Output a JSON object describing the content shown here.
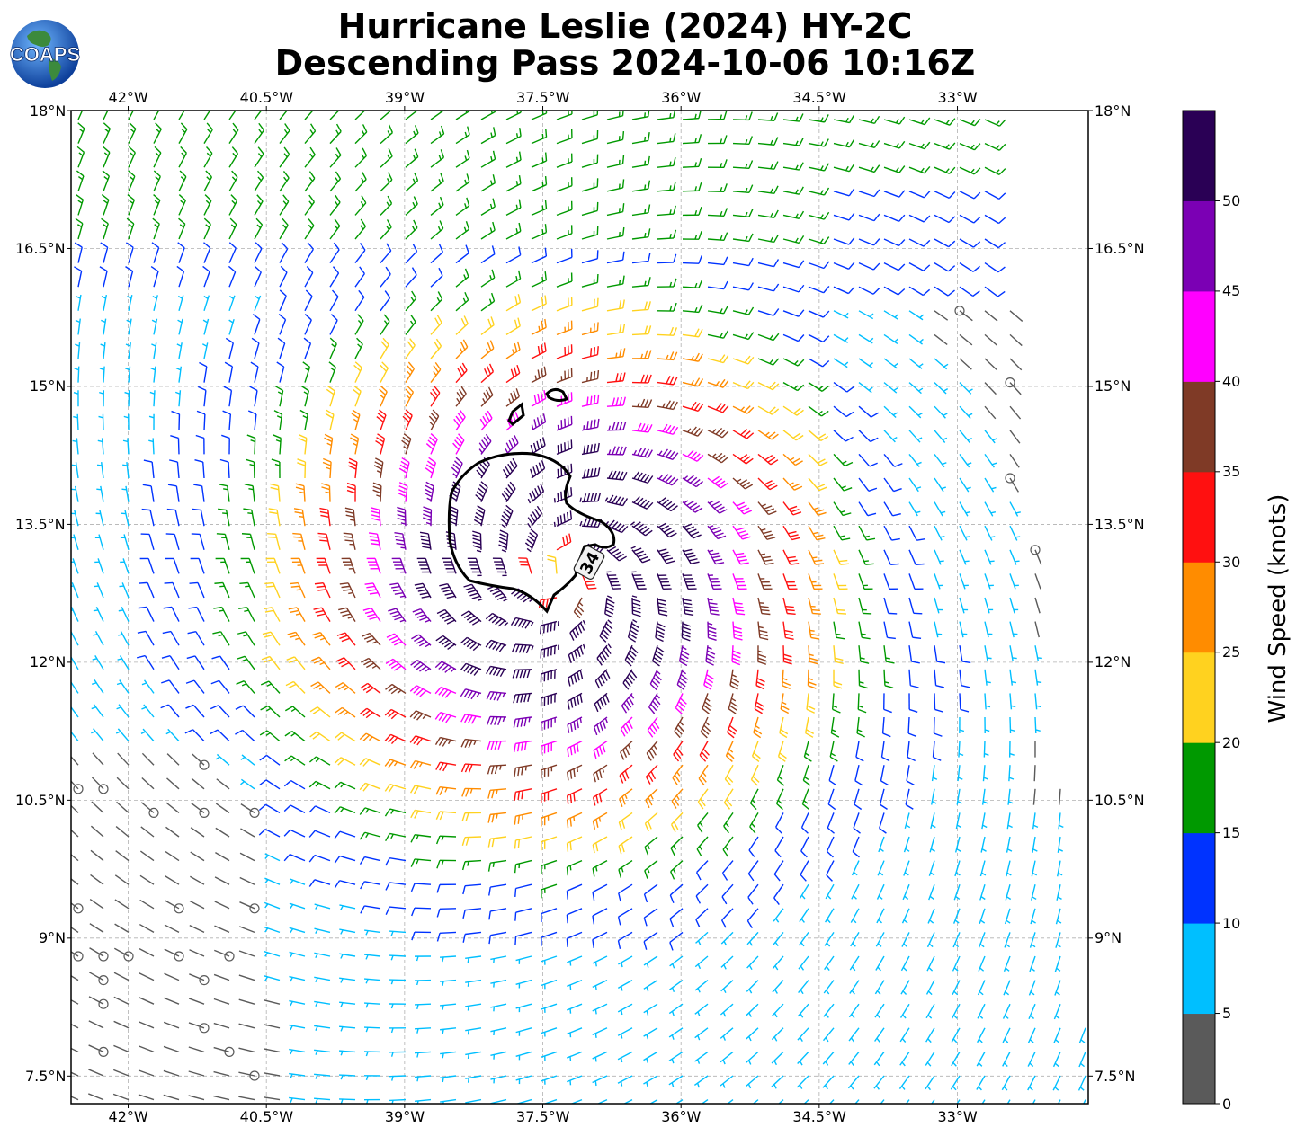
{
  "title": {
    "line1": "Hurricane Leslie (2024) HY-2C",
    "line2": "Descending Pass 2024-10-06 10:16Z"
  },
  "logo": {
    "text": "COAPS"
  },
  "map": {
    "lon_ticks": [
      "42°W",
      "40.5°W",
      "39°W",
      "37.5°W",
      "36°W",
      "34.5°W",
      "33°W"
    ],
    "lon_values": [
      -42,
      -40.5,
      -39,
      -37.5,
      -36,
      -34.5,
      -33
    ],
    "lat_ticks": [
      "18°N",
      "16.5°N",
      "15°N",
      "13.5°N",
      "12°N",
      "10.5°N",
      "9°N",
      "7.5°N"
    ],
    "lat_values": [
      18,
      16.5,
      15,
      13.5,
      12,
      10.5,
      9,
      7.5
    ],
    "lon_range": [
      -42.62,
      -31.58
    ],
    "lat_range": [
      7.2,
      18
    ],
    "center": {
      "lon": -37.3,
      "lat": 12.95
    },
    "contour_label": "34"
  },
  "colorbar": {
    "title": "Wind Speed (knots)",
    "tick_labels": [
      "0",
      "5",
      "10",
      "15",
      "20",
      "25",
      "30",
      "35",
      "40",
      "45",
      "50"
    ],
    "bins": [
      0,
      5,
      10,
      15,
      20,
      25,
      30,
      35,
      40,
      45,
      50,
      55
    ],
    "colors": [
      "#5a5a5a",
      "#00bfff",
      "#0033ff",
      "#009900",
      "#ffd21f",
      "#ff8c00",
      "#ff1010",
      "#7f3a26",
      "#ff00ff",
      "#7b00b4",
      "#2a0055"
    ]
  },
  "colors": {
    "contour": "#000000",
    "grid": "#b0b0b0"
  }
}
